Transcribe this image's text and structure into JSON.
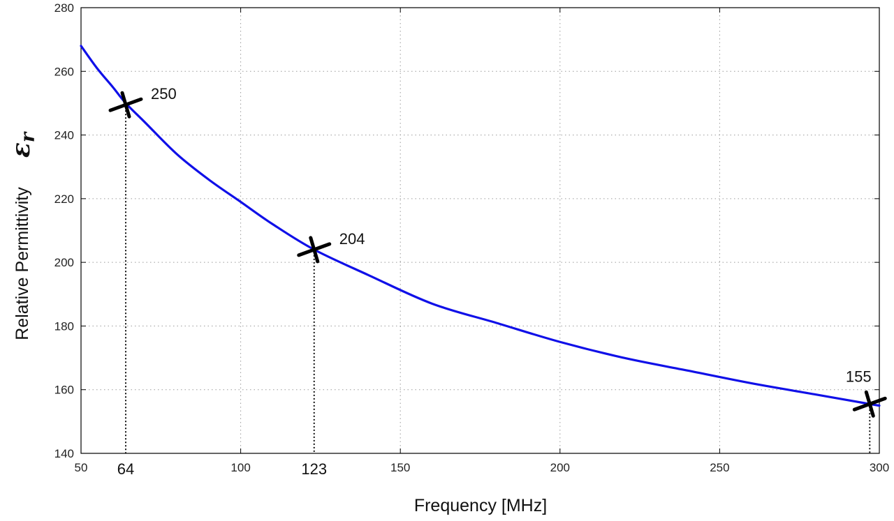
{
  "chart_data": {
    "type": "line",
    "xlabel": "Frequency [MHz]",
    "ylabel": "Relative Permittivity",
    "ylabel_symbol": "εr",
    "xlim": [
      50,
      300
    ],
    "ylim": [
      140,
      280
    ],
    "grid": true,
    "x_ticks": [
      "50",
      "100",
      "150",
      "200",
      "250",
      "300"
    ],
    "x_tick_values": [
      50,
      100,
      150,
      200,
      250,
      300
    ],
    "y_ticks": [
      "140",
      "160",
      "180",
      "200",
      "220",
      "240",
      "260",
      "280"
    ],
    "y_tick_values": [
      140,
      160,
      180,
      200,
      220,
      240,
      260,
      280
    ],
    "series": [
      {
        "color": "#1010e8",
        "x": [
          50,
          55,
          60,
          64,
          70,
          80,
          90,
          100,
          110,
          123,
          140,
          160,
          180,
          200,
          220,
          240,
          260,
          280,
          297,
          300
        ],
        "y": [
          268,
          261,
          255,
          250,
          244,
          234,
          226,
          219,
          212,
          204,
          196,
          187,
          181,
          175,
          170,
          166,
          162,
          158.5,
          155.5,
          155
        ]
      }
    ],
    "markers": [
      {
        "x": 64,
        "y": 249.5,
        "label": "250",
        "xtick_label": "64"
      },
      {
        "x": 123,
        "y": 204,
        "label": "204",
        "xtick_label": "123"
      },
      {
        "x": 297,
        "y": 155.5,
        "label": "155",
        "xtick_label": ""
      }
    ]
  }
}
